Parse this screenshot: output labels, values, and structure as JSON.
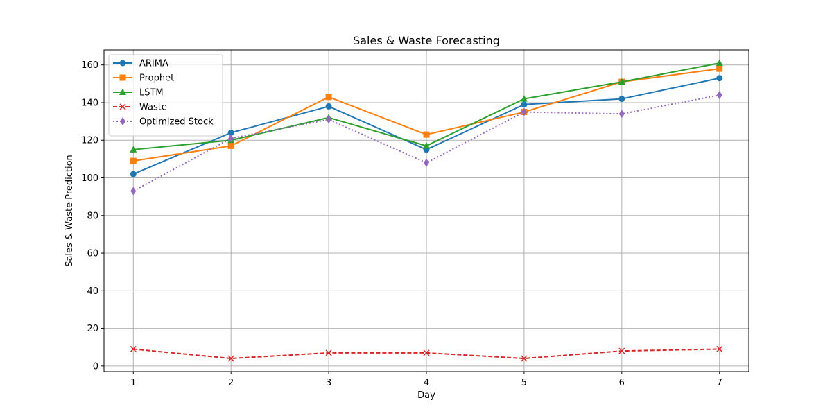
{
  "chart_data": {
    "type": "line",
    "title": "Sales & Waste Forecasting",
    "xlabel": "Day",
    "ylabel": "Sales & Waste Prediction",
    "x": [
      1,
      2,
      3,
      4,
      5,
      6,
      7
    ],
    "xlim": [
      0.7,
      7.3
    ],
    "ylim": [
      -3,
      168
    ],
    "xticks": [
      1,
      2,
      3,
      4,
      5,
      6,
      7
    ],
    "yticks": [
      0,
      20,
      40,
      60,
      80,
      100,
      120,
      140,
      160
    ],
    "grid": true,
    "legend_position": "upper-left",
    "series": [
      {
        "name": "ARIMA",
        "values": [
          102,
          124,
          138,
          115,
          139,
          142,
          153
        ],
        "color": "#1f77b4",
        "marker": "circle",
        "line": "solid"
      },
      {
        "name": "Prophet",
        "values": [
          109,
          117,
          143,
          123,
          135,
          151,
          158
        ],
        "color": "#ff7f0e",
        "marker": "square",
        "line": "solid"
      },
      {
        "name": "LSTM",
        "values": [
          115,
          120,
          132,
          117,
          142,
          151,
          161
        ],
        "color": "#2ca02c",
        "marker": "triangle",
        "line": "solid"
      },
      {
        "name": "Waste",
        "values": [
          9,
          4,
          7,
          7,
          4,
          8,
          9
        ],
        "color": "#d62728",
        "marker": "x",
        "line": "dashed"
      },
      {
        "name": "Optimized Stock",
        "values": [
          93,
          121,
          131,
          108,
          135,
          134,
          144
        ],
        "color": "#9467bd",
        "marker": "diamond",
        "line": "dotted"
      }
    ]
  }
}
